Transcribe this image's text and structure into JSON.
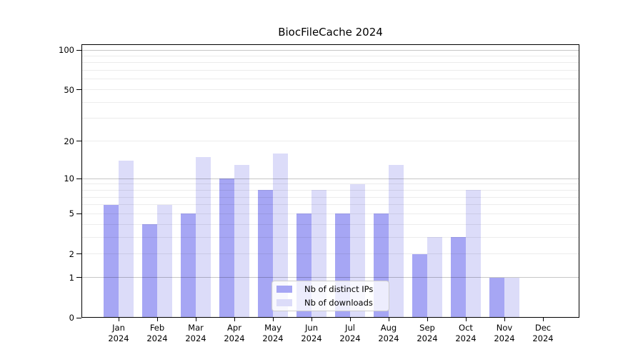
{
  "title": "BiocFileCache 2024",
  "legend": {
    "items": [
      {
        "label": "Nb of distinct IPs",
        "color": "#a6a6f4"
      },
      {
        "label": "Nb of downloads",
        "color": "#dcdcf9"
      }
    ]
  },
  "chart_data": {
    "type": "bar",
    "title": "BiocFileCache 2024",
    "categories": [
      "Jan 2024",
      "Feb 2024",
      "Mar 2024",
      "Apr 2024",
      "May 2024",
      "Jun 2024",
      "Jul 2024",
      "Aug 2024",
      "Sep 2024",
      "Oct 2024",
      "Nov 2024",
      "Dec 2024"
    ],
    "months": [
      "Jan",
      "Feb",
      "Mar",
      "Apr",
      "May",
      "Jun",
      "Jul",
      "Aug",
      "Sep",
      "Oct",
      "Nov",
      "Dec"
    ],
    "year": "2024",
    "series": [
      {
        "name": "Nb of distinct IPs",
        "color": "#a6a6f4",
        "values": [
          6,
          4,
          5,
          10,
          8,
          5,
          5,
          5,
          2,
          3,
          1,
          0
        ]
      },
      {
        "name": "Nb of downloads",
        "color": "#dcdcf9",
        "values": [
          14,
          6,
          15,
          13,
          16,
          8,
          9,
          13,
          3,
          8,
          1,
          0
        ]
      }
    ],
    "xlabel": "",
    "ylabel": "",
    "ylim": [
      0,
      100
    ],
    "y_scale": "log10(value+1)",
    "y_ticks": [
      100,
      50,
      20,
      10,
      5,
      2,
      1,
      0
    ],
    "grid_major": [
      1,
      10,
      100
    ],
    "grid_minor": [
      2,
      3,
      4,
      5,
      6,
      7,
      8,
      9,
      20,
      30,
      40,
      50,
      60,
      70,
      80,
      90
    ],
    "grid": "horizontal gridlines drawn over bars",
    "legend_position": "inside bottom-center",
    "bar_layout": "grouped, 2 bars per month, no gap within group"
  }
}
